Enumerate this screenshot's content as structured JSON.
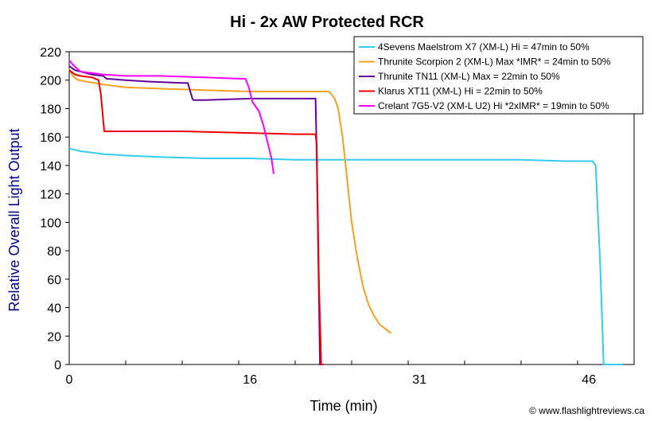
{
  "chart_data": {
    "type": "line",
    "title": "Hi - 2x AW Protected RCR",
    "xlabel": "Time (min)",
    "ylabel": "Relative Overall Light Output",
    "xlim": [
      0,
      50
    ],
    "ylim": [
      0,
      220
    ],
    "x_ticks": [
      "0",
      "16",
      "31",
      "46"
    ],
    "y_ticks": [
      "0",
      "20",
      "40",
      "60",
      "80",
      "100",
      "120",
      "140",
      "160",
      "180",
      "200",
      "220"
    ],
    "grid": false,
    "legend_position": "top-right",
    "credit": "© www.flashlightreviews.ca",
    "colors": {
      "plot_background": "#ffffff",
      "border": "#000000",
      "ylabel": "#00008b"
    },
    "series": [
      {
        "name": "4Sevens Maelstrom X7 (XM-L) Hi = 47min to 50%",
        "color": "#33ccee",
        "points": [
          [
            0,
            152
          ],
          [
            0.5,
            151
          ],
          [
            1,
            150
          ],
          [
            2,
            149
          ],
          [
            3,
            148
          ],
          [
            5,
            147
          ],
          [
            8,
            146
          ],
          [
            12,
            145
          ],
          [
            16,
            145
          ],
          [
            20,
            144
          ],
          [
            25,
            144
          ],
          [
            30,
            144
          ],
          [
            35,
            144
          ],
          [
            40,
            144
          ],
          [
            44,
            143
          ],
          [
            46.3,
            143
          ],
          [
            46.6,
            140
          ],
          [
            47,
            70
          ],
          [
            47.3,
            0
          ],
          [
            49,
            0
          ]
        ]
      },
      {
        "name": "Thrunite Scorpion 2 (XM-L) Max *IMR* = 24min to 50%",
        "color": "#f4a020",
        "points": [
          [
            0,
            208
          ],
          [
            0.3,
            203
          ],
          [
            0.8,
            200
          ],
          [
            1.5,
            199
          ],
          [
            3,
            197
          ],
          [
            5,
            195
          ],
          [
            8,
            194
          ],
          [
            12,
            193
          ],
          [
            16,
            192
          ],
          [
            20,
            192
          ],
          [
            22,
            192
          ],
          [
            23,
            192
          ],
          [
            23.5,
            187
          ],
          [
            23.8,
            180
          ],
          [
            24.2,
            160
          ],
          [
            24.6,
            130
          ],
          [
            25,
            100
          ],
          [
            25.5,
            75
          ],
          [
            26,
            55
          ],
          [
            26.5,
            42
          ],
          [
            27,
            34
          ],
          [
            27.5,
            28
          ],
          [
            28,
            25
          ],
          [
            28.5,
            22
          ]
        ]
      },
      {
        "name": "Thrunite TN11 (XM-L) Max = 22min to 50%",
        "color": "#660099",
        "points": [
          [
            0,
            210
          ],
          [
            0.5,
            207
          ],
          [
            1,
            206
          ],
          [
            2,
            204
          ],
          [
            3,
            203
          ],
          [
            3.3,
            201
          ],
          [
            5,
            200
          ],
          [
            7,
            199
          ],
          [
            10,
            198
          ],
          [
            10.5,
            198
          ],
          [
            10.9,
            187
          ],
          [
            11,
            186
          ],
          [
            12,
            186
          ],
          [
            16,
            187
          ],
          [
            20,
            187
          ],
          [
            21.8,
            187
          ],
          [
            21.9,
            150
          ],
          [
            22.2,
            0
          ],
          [
            22.5,
            0
          ]
        ]
      },
      {
        "name": "Klarus XT11 (XM-L) Hi = 22min to 50%",
        "color": "#ee0000",
        "points": [
          [
            0,
            207
          ],
          [
            0.5,
            204
          ],
          [
            1,
            203
          ],
          [
            2,
            202
          ],
          [
            2.6,
            200
          ],
          [
            2.8,
            190
          ],
          [
            3.1,
            164
          ],
          [
            6,
            164
          ],
          [
            10,
            164
          ],
          [
            15,
            163
          ],
          [
            20,
            162
          ],
          [
            21.8,
            162
          ],
          [
            21.9,
            155
          ],
          [
            22.1,
            60
          ],
          [
            22.3,
            0
          ],
          [
            22.5,
            0
          ]
        ]
      },
      {
        "name": "Crelant 7G5-V2 (XM-L U2) Hi *2xIMR* = 19min to 50%",
        "color": "#ff00ff",
        "points": [
          [
            0,
            214
          ],
          [
            0.3,
            211
          ],
          [
            1,
            206
          ],
          [
            2,
            205
          ],
          [
            3,
            204
          ],
          [
            5,
            203
          ],
          [
            8,
            203
          ],
          [
            12,
            202
          ],
          [
            15,
            201
          ],
          [
            15.6,
            201
          ],
          [
            15.9,
            195
          ],
          [
            16.2,
            185
          ],
          [
            16.8,
            178
          ],
          [
            17.2,
            168
          ],
          [
            17.6,
            155
          ],
          [
            17.9,
            145
          ],
          [
            18.1,
            134
          ]
        ]
      }
    ]
  }
}
